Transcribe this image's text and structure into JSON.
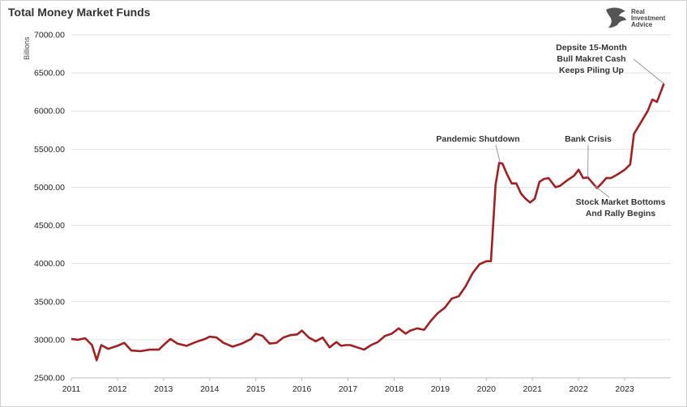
{
  "chart_data": {
    "type": "line",
    "title": "Total Money Market Funds",
    "ylabel": "Billions",
    "xlabel": "",
    "ylim": [
      2500,
      7000
    ],
    "xlim": [
      2011,
      2024.0
    ],
    "y_ticks": [
      "2500.00",
      "3000.00",
      "3500.00",
      "4000.00",
      "4500.00",
      "5000.00",
      "5500.00",
      "6000.00",
      "6500.00",
      "7000.00"
    ],
    "x_ticks": [
      "2011",
      "2012",
      "2013",
      "2014",
      "2015",
      "2016",
      "2017",
      "2018",
      "2019",
      "2020",
      "2021",
      "2022",
      "2023"
    ],
    "grid": "horizontal",
    "line_color": "#a31f1f",
    "series": [
      {
        "name": "",
        "x": [
          2011.0,
          2011.15,
          2011.3,
          2011.45,
          2011.55,
          2011.65,
          2011.8,
          2012.0,
          2012.15,
          2012.3,
          2012.5,
          2012.7,
          2012.9,
          2013.0,
          2013.15,
          2013.3,
          2013.5,
          2013.7,
          2013.9,
          2014.0,
          2014.15,
          2014.3,
          2014.5,
          2014.7,
          2014.9,
          2015.0,
          2015.15,
          2015.3,
          2015.45,
          2015.6,
          2015.75,
          2015.9,
          2016.0,
          2016.15,
          2016.3,
          2016.45,
          2016.6,
          2016.75,
          2016.85,
          2016.95,
          2017.05,
          2017.2,
          2017.35,
          2017.5,
          2017.65,
          2017.8,
          2017.95,
          2018.1,
          2018.25,
          2018.35,
          2018.5,
          2018.65,
          2018.8,
          2018.95,
          2019.1,
          2019.25,
          2019.4,
          2019.55,
          2019.7,
          2019.85,
          2020.0,
          2020.1,
          2020.2,
          2020.28,
          2020.35,
          2020.45,
          2020.55,
          2020.65,
          2020.75,
          2020.85,
          2020.95,
          2021.05,
          2021.15,
          2021.25,
          2021.35,
          2021.5,
          2021.6,
          2021.75,
          2021.9,
          2022.0,
          2022.1,
          2022.2,
          2022.3,
          2022.4,
          2022.5,
          2022.6,
          2022.7,
          2022.85,
          2023.0,
          2023.12,
          2023.2,
          2023.35,
          2023.5,
          2023.6,
          2023.7,
          2023.85
        ],
        "values": [
          3010,
          3000,
          3020,
          2930,
          2730,
          2930,
          2880,
          2920,
          2960,
          2860,
          2850,
          2870,
          2870,
          2930,
          3010,
          2950,
          2920,
          2970,
          3010,
          3040,
          3030,
          2960,
          2910,
          2950,
          3010,
          3080,
          3050,
          2950,
          2960,
          3030,
          3060,
          3070,
          3120,
          3030,
          2980,
          3030,
          2900,
          2970,
          2920,
          2930,
          2930,
          2900,
          2870,
          2930,
          2970,
          3050,
          3080,
          3150,
          3080,
          3120,
          3150,
          3130,
          3250,
          3350,
          3420,
          3540,
          3570,
          3700,
          3870,
          3990,
          4030,
          4030,
          5030,
          5320,
          5310,
          5170,
          5050,
          5050,
          4920,
          4850,
          4800,
          4850,
          5070,
          5110,
          5120,
          5000,
          5020,
          5090,
          5150,
          5230,
          5120,
          5130,
          5060,
          4990,
          5050,
          5120,
          5120,
          5170,
          5230,
          5300,
          5700,
          5850,
          6000,
          6150,
          6120,
          6360
        ]
      }
    ],
    "annotations": [
      {
        "lines": [
          "Depsite 15-Month",
          "Bull Makret Cash",
          "Keeps Piling Up"
        ],
        "x": 2023.85,
        "y": 6360
      },
      {
        "lines": [
          "Pandemic Shutdown"
        ],
        "x": 2020.3,
        "y": 5320
      },
      {
        "lines": [
          "Bank Crisis"
        ],
        "x": 2022.2,
        "y": 5130
      },
      {
        "lines": [
          "Stock Market Bottoms",
          "And Rally Begins"
        ],
        "x": 2022.35,
        "y": 5020
      }
    ]
  },
  "branding": {
    "line1": "Real",
    "line2": "Investment",
    "line3": "Advice",
    "logo_color": "#555555"
  }
}
